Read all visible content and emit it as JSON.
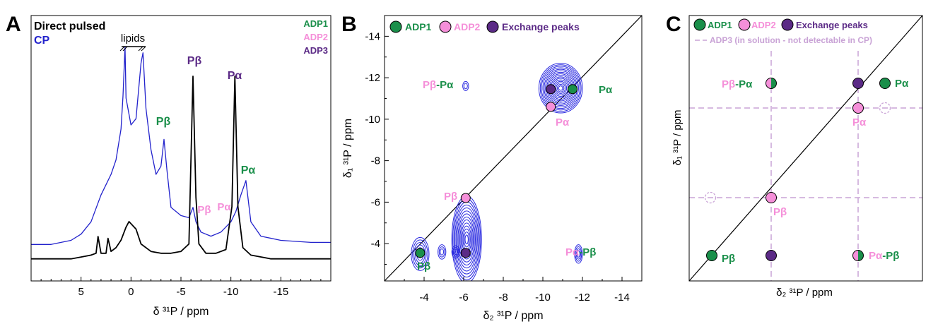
{
  "colors": {
    "adp1": "#1a8f4a",
    "adp2": "#f58fd9",
    "adp3": "#5b2a86",
    "cp": "#2222cc",
    "direct": "#000000",
    "contour": "#2a2ae0",
    "guide": "#c9a3d6"
  },
  "panels": {
    "a": {
      "letter": "A",
      "legend_direct": "Direct pulsed",
      "legend_cp": "CP",
      "legend_adp1": "ADP1",
      "legend_adp2": "ADP2",
      "legend_adp3": "ADP3",
      "lipids_label": "lipids",
      "xlabel": "δ ³¹P / ppm",
      "peak_pb_adp3": "Pβ",
      "peak_pa_adp3": "Pα",
      "peak_pb_adp1": "Pβ",
      "peak_pa_adp1": "Pα",
      "peak_pb_adp2": "Pβ",
      "peak_pa_adp2": "Pα"
    },
    "b": {
      "letter": "B",
      "legend_adp1": "ADP1",
      "legend_adp2": "ADP2",
      "legend_exchange": "Exchange peaks",
      "xlabel": "δ₂ ³¹P / ppm",
      "ylabel": "δ₁ ³¹P / ppm",
      "label_pbpa_pb": "Pβ",
      "label_pbpa_dash": "-",
      "label_pbpa_pa": "Pα",
      "label_pa_adp1": "Pα",
      "label_pa_adp2": "Pα",
      "label_pb_adp2": "Pβ",
      "label_pb_adp1": "Pβ",
      "label_papb_pa": "Pα",
      "label_papb_dash": "-",
      "label_papb_pb": "Pβ"
    },
    "c": {
      "letter": "C",
      "legend_adp1": "ADP1",
      "legend_adp2": "ADP2",
      "legend_exchange": "Exchange peaks",
      "legend_adp3": "ADP3 (in solution - not detectable in CP)",
      "xlabel": "δ₂ ³¹P / ppm",
      "ylabel": "δ₁ ³¹P / ppm",
      "label_pbpa_pb": "Pβ",
      "label_pbpa_dash": "-",
      "label_pbpa_pa": "Pα",
      "label_pa_adp1": "Pα",
      "label_pa_adp2": "Pα",
      "label_pb_adp2": "Pβ",
      "label_pb_adp1": "Pβ",
      "label_papb_pa": "Pα",
      "label_papb_dash": "-",
      "label_papb_pb": "Pβ"
    }
  },
  "chart_data": [
    {
      "type": "line",
      "panel": "A",
      "xlabel": "δ ³¹P / ppm",
      "x_reversed": true,
      "xlim": [
        10,
        -20
      ],
      "x_ticks": [
        5,
        0,
        -5,
        -10,
        -15
      ],
      "y_axis_shown": false,
      "series": [
        {
          "name": "Direct pulsed",
          "x": [
            10,
            6,
            5,
            4,
            3.5,
            3.3,
            3,
            2.5,
            2.3,
            2,
            1.5,
            1,
            0.5,
            0.2,
            -0.5,
            -1,
            -2,
            -3,
            -4,
            -5,
            -5.8,
            -6.2,
            -6.5,
            -6.8,
            -7.5,
            -8.5,
            -9.5,
            -10.1,
            -10.4,
            -10.7,
            -11.2,
            -12,
            -14,
            -17,
            -20
          ],
          "y": [
            0.02,
            0.02,
            0.03,
            0.04,
            0.05,
            0.14,
            0.05,
            0.05,
            0.13,
            0.06,
            0.08,
            0.12,
            0.19,
            0.22,
            0.18,
            0.1,
            0.06,
            0.05,
            0.05,
            0.06,
            0.1,
            1.0,
            0.35,
            0.1,
            0.05,
            0.05,
            0.07,
            0.3,
            1.0,
            0.3,
            0.08,
            0.04,
            0.02,
            0.02,
            0.02
          ]
        },
        {
          "name": "CP",
          "x": [
            10,
            8,
            6,
            5,
            4,
            3,
            2,
            1.5,
            1,
            0.8,
            0.6,
            0.5,
            0,
            -0.5,
            -1,
            -1.2,
            -1.5,
            -2,
            -2.5,
            -3,
            -3.3,
            -3.6,
            -4,
            -5,
            -5.8,
            -6.2,
            -6.5,
            -7,
            -8,
            -9,
            -10,
            -10.5,
            -11,
            -11.5,
            -12,
            -13,
            -15,
            -18,
            -20
          ],
          "y": [
            0.04,
            0.04,
            0.06,
            0.09,
            0.15,
            0.28,
            0.38,
            0.45,
            0.6,
            0.76,
            1.0,
            0.75,
            0.62,
            0.65,
            0.92,
            0.97,
            0.7,
            0.5,
            0.38,
            0.42,
            0.55,
            0.4,
            0.22,
            0.18,
            0.17,
            0.22,
            0.15,
            0.1,
            0.08,
            0.1,
            0.15,
            0.2,
            0.28,
            0.35,
            0.15,
            0.08,
            0.06,
            0.05,
            0.05
          ]
        }
      ]
    },
    {
      "type": "heatmap",
      "panel": "B",
      "xlabel": "δ₂ ³¹P / ppm",
      "ylabel": "δ₁ ³¹P / ppm",
      "xlim": [
        -2,
        -15
      ],
      "ylim": [
        -2.2,
        -15
      ],
      "x_ticks": [
        -4,
        -6,
        -8,
        -10,
        -12,
        -14
      ],
      "y_ticks": [
        -4,
        -6,
        -8,
        -10,
        -12,
        -14
      ],
      "diagonal": true,
      "contours": [
        {
          "x": -3.8,
          "y": -3.5,
          "rx": 0.45,
          "ry": 0.8,
          "levels": 6
        },
        {
          "x": -4.9,
          "y": -3.6,
          "rx": 0.2,
          "ry": 0.35,
          "levels": 3
        },
        {
          "x": -5.6,
          "y": -3.6,
          "rx": 0.2,
          "ry": 0.3,
          "levels": 3
        },
        {
          "x": -6.15,
          "y": -4.2,
          "rx": 0.75,
          "ry": 2.1,
          "levels": 14
        },
        {
          "x": -6.1,
          "y": -11.6,
          "rx": 0.15,
          "ry": 0.22,
          "levels": 2
        },
        {
          "x": -11.8,
          "y": -3.5,
          "rx": 0.2,
          "ry": 0.45,
          "levels": 4
        },
        {
          "x": -10.9,
          "y": -11.5,
          "rx": 1.1,
          "ry": 1.2,
          "levels": 16
        }
      ],
      "markers": [
        {
          "x": -3.8,
          "y": -3.55,
          "type": "ADP1"
        },
        {
          "x": -6.1,
          "y": -3.55,
          "type": "Exchange"
        },
        {
          "x": -6.1,
          "y": -6.2,
          "type": "ADP2"
        },
        {
          "x": -10.4,
          "y": -10.6,
          "type": "ADP2"
        },
        {
          "x": -10.4,
          "y": -11.45,
          "type": "Exchange"
        },
        {
          "x": -11.5,
          "y": -11.45,
          "type": "ADP1"
        }
      ]
    },
    {
      "type": "scatter",
      "panel": "C",
      "xlabel": "δ₂ ³¹P / ppm",
      "ylabel": "δ₁ ³¹P / ppm",
      "diagonal": true,
      "x_ticks": [],
      "y_ticks": [],
      "markers": [
        {
          "x": -3.8,
          "y": -3.55,
          "type": "ADP1"
        },
        {
          "x": -6.1,
          "y": -3.55,
          "type": "Exchange"
        },
        {
          "x": -10.4,
          "y": -3.55,
          "type": "ADP2/ADP1 split"
        },
        {
          "x": -6.1,
          "y": -6.2,
          "type": "ADP2"
        },
        {
          "x": -6.1,
          "y": -11.45,
          "type": "ADP2/ADP1 split"
        },
        {
          "x": -10.4,
          "y": -10.6,
          "type": "ADP2"
        },
        {
          "x": -10.4,
          "y": -11.45,
          "type": "Exchange"
        },
        {
          "x": -11.5,
          "y": -11.45,
          "type": "ADP1"
        },
        {
          "x": -11.5,
          "y": -10.6,
          "type": "ADP3"
        },
        {
          "x": -3.5,
          "y": -6.2,
          "type": "ADP3"
        }
      ],
      "guide_lines_x": [
        -6.1,
        -10.4
      ],
      "guide_lines_y": [
        -6.2,
        -10.6
      ]
    }
  ]
}
